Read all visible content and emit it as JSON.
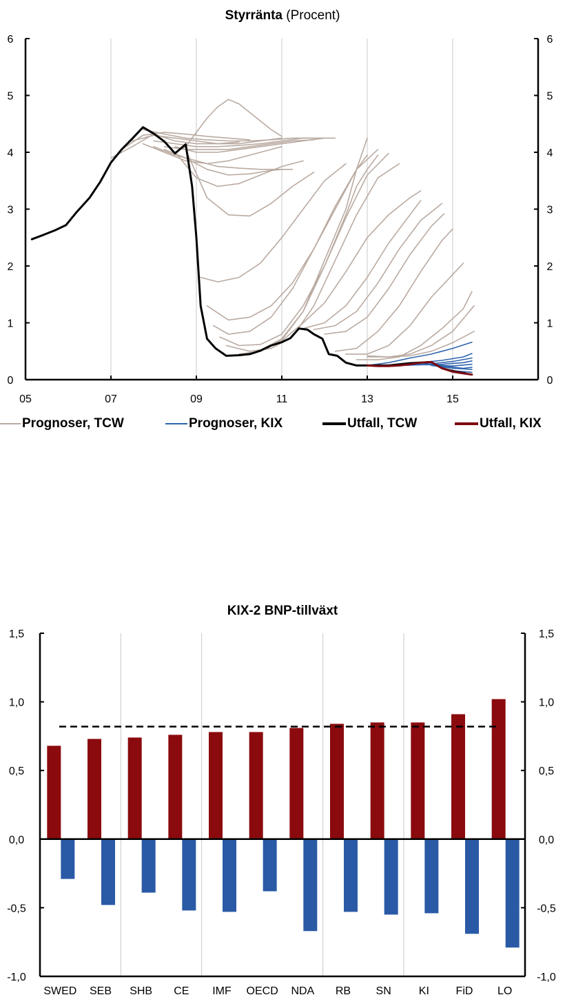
{
  "colors": {
    "forecast_tcw": "#b9aaa1",
    "forecast_kix": "#2e64ad",
    "outcome_tcw": "#000000",
    "outcome_kix": "#7d0a12",
    "bar_positive": "#8a0a0e",
    "bar_negative": "#2a5aa6",
    "grid": "#c8c8c8"
  },
  "chart1": {
    "title_bold": "Styrränta",
    "title_rest": " (Procent)",
    "legend": [
      {
        "label": "Prognoser, TCW",
        "color": "#b9aaa1",
        "weight": "thin"
      },
      {
        "label": "Prognoser, KIX",
        "color": "#2e64ad",
        "weight": "thin"
      },
      {
        "label": "Utfall, TCW",
        "color": "#000000",
        "weight": "thick"
      },
      {
        "label": "Utfall, KIX",
        "color": "#7d0a12",
        "weight": "thick"
      }
    ]
  },
  "chart2": {
    "title": "KIX-2 BNP-tillväxt"
  },
  "chart_data": [
    {
      "type": "line",
      "title": "Styrränta (Procent)",
      "xlim": [
        5,
        17
      ],
      "ylim": [
        0,
        6
      ],
      "x_ticks": [
        5,
        7,
        9,
        11,
        13,
        15
      ],
      "x_tick_labels": [
        "05",
        "07",
        "09",
        "11",
        "13",
        "15"
      ],
      "y_ticks": [
        0,
        1,
        2,
        3,
        4,
        5,
        6
      ],
      "y_tick_labels": [
        "0",
        "1",
        "2",
        "3",
        "4",
        "5",
        "6"
      ],
      "grid": "vertical",
      "legend_position": "bottom",
      "outcome_tcw": {
        "name": "Utfall, TCW",
        "x": [
          5.15,
          5.4,
          5.7,
          5.95,
          6.2,
          6.5,
          6.75,
          7.0,
          7.25,
          7.5,
          7.75,
          8.0,
          8.25,
          8.5,
          8.75,
          8.8,
          8.9,
          9.0,
          9.1,
          9.25,
          9.45,
          9.7,
          10.0,
          10.25,
          10.5,
          10.75,
          11.0,
          11.2,
          11.4,
          11.6,
          11.75,
          11.95,
          12.1,
          12.3,
          12.5,
          12.75,
          13.0,
          13.5,
          14.0,
          14.25,
          14.5,
          14.75,
          15.0,
          15.3
        ],
        "y": [
          2.47,
          2.54,
          2.63,
          2.72,
          2.95,
          3.2,
          3.48,
          3.82,
          4.05,
          4.24,
          4.44,
          4.33,
          4.19,
          3.98,
          4.14,
          3.9,
          3.4,
          2.5,
          1.3,
          0.72,
          0.55,
          0.42,
          0.43,
          0.45,
          0.51,
          0.6,
          0.66,
          0.73,
          0.9,
          0.88,
          0.8,
          0.72,
          0.45,
          0.42,
          0.3,
          0.25,
          0.25,
          0.25,
          0.29,
          0.3,
          0.31,
          0.2,
          0.15,
          0.11
        ]
      },
      "outcome_kix": {
        "name": "Utfall, KIX",
        "x": [
          13.0,
          13.25,
          13.5,
          13.75,
          14.0,
          14.25,
          14.5,
          14.75,
          15.0,
          15.25,
          15.45
        ],
        "y": [
          0.25,
          0.24,
          0.24,
          0.25,
          0.27,
          0.3,
          0.31,
          0.2,
          0.14,
          0.11,
          0.09
        ]
      },
      "forecasts_tcw": [
        {
          "x": [
            7.0,
            7.5,
            8.0,
            8.5,
            9.0,
            9.5,
            10.0
          ],
          "y": [
            3.9,
            4.1,
            4.32,
            4.2,
            4.15,
            4.15,
            4.18
          ]
        },
        {
          "x": [
            7.25,
            7.75,
            8.25,
            8.75,
            9.25,
            9.75,
            10.25
          ],
          "y": [
            4.05,
            4.3,
            4.35,
            4.32,
            4.28,
            4.25,
            4.22
          ]
        },
        {
          "x": [
            7.5,
            8.0,
            8.5,
            9.0,
            9.5,
            10.0,
            10.5,
            11.0
          ],
          "y": [
            4.2,
            4.3,
            4.25,
            4.2,
            4.15,
            4.15,
            4.2,
            4.25
          ]
        },
        {
          "x": [
            7.75,
            8.25,
            8.75,
            9.25,
            9.75,
            10.25,
            10.75,
            11.25,
            11.75
          ],
          "y": [
            4.4,
            4.32,
            4.25,
            4.22,
            4.2,
            4.2,
            4.22,
            4.25,
            4.25
          ]
        },
        {
          "x": [
            8.0,
            8.5,
            9.0,
            9.5,
            10.0,
            10.5,
            11.0,
            11.5,
            12.0
          ],
          "y": [
            4.2,
            4.15,
            4.1,
            4.1,
            4.12,
            4.15,
            4.2,
            4.25,
            4.25
          ]
        },
        {
          "x": [
            8.25,
            8.75,
            9.25,
            9.75,
            10.25,
            10.75,
            11.25,
            11.75
          ],
          "y": [
            4.1,
            4.05,
            4.05,
            4.05,
            4.1,
            4.15,
            4.2,
            4.22
          ]
        },
        {
          "x": [
            8.5,
            9.0,
            9.5,
            10.0,
            10.5,
            11.0,
            11.5,
            12.0,
            12.25
          ],
          "y": [
            4.1,
            4.0,
            4.0,
            4.05,
            4.1,
            4.15,
            4.2,
            4.25,
            4.25
          ]
        },
        {
          "x": [
            8.5,
            8.75,
            9.0,
            9.25,
            9.5,
            9.75,
            10.0,
            10.25,
            10.5,
            10.75,
            11.0
          ],
          "y": [
            4.0,
            4.1,
            4.35,
            4.6,
            4.8,
            4.93,
            4.85,
            4.7,
            4.55,
            4.4,
            4.28
          ]
        },
        {
          "x": [
            7.75,
            8.25,
            8.75,
            9.25,
            9.75,
            10.25,
            10.75,
            11.0
          ],
          "y": [
            4.15,
            4.0,
            3.85,
            3.8,
            3.85,
            3.95,
            4.05,
            4.1
          ]
        },
        {
          "x": [
            8.0,
            8.5,
            9.0,
            9.5,
            10.0,
            10.5,
            11.0,
            11.25
          ],
          "y": [
            4.1,
            3.95,
            3.85,
            3.75,
            3.72,
            3.7,
            3.7,
            3.7
          ]
        },
        {
          "x": [
            8.25,
            8.75,
            9.25,
            9.75,
            10.25,
            10.75,
            11.0
          ],
          "y": [
            4.05,
            3.9,
            3.7,
            3.6,
            3.62,
            3.68,
            3.7
          ]
        },
        {
          "x": [
            8.5,
            9.0,
            9.5,
            10.0,
            10.5,
            11.0,
            11.5
          ],
          "y": [
            4.0,
            3.55,
            3.4,
            3.45,
            3.6,
            3.75,
            3.85
          ]
        },
        {
          "x": [
            8.75,
            9.25,
            9.75,
            10.25,
            10.75,
            11.25,
            11.75
          ],
          "y": [
            4.05,
            3.2,
            2.9,
            2.88,
            3.1,
            3.4,
            3.65
          ]
        },
        {
          "x": [
            9.1,
            9.5,
            10.0,
            10.5,
            11.0,
            11.5,
            12.0,
            12.5
          ],
          "y": [
            1.8,
            1.72,
            1.8,
            2.05,
            2.5,
            3.0,
            3.5,
            3.8
          ]
        },
        {
          "x": [
            9.25,
            9.75,
            10.25,
            10.75,
            11.25,
            11.75,
            12.25,
            12.75,
            13.0
          ],
          "y": [
            1.3,
            1.05,
            1.1,
            1.3,
            1.7,
            2.3,
            3.0,
            3.7,
            3.95
          ]
        },
        {
          "x": [
            9.4,
            9.75,
            10.25,
            10.75,
            11.25,
            11.75,
            12.25,
            12.75,
            13.25
          ],
          "y": [
            0.95,
            0.8,
            0.85,
            1.1,
            1.6,
            2.3,
            3.05,
            3.7,
            4.05
          ]
        },
        {
          "x": [
            9.55,
            10.0,
            10.5,
            11.0,
            11.5,
            12.0,
            12.5,
            13.0,
            13.5
          ],
          "y": [
            0.75,
            0.6,
            0.62,
            0.8,
            1.3,
            2.0,
            2.85,
            3.6,
            3.98
          ]
        },
        {
          "x": [
            9.7,
            10.25,
            10.75,
            11.25,
            11.75,
            12.25,
            12.75,
            13.25,
            13.75
          ],
          "y": [
            0.6,
            0.5,
            0.55,
            0.75,
            1.3,
            2.1,
            2.9,
            3.55,
            3.8
          ]
        },
        {
          "x": [
            10.0,
            10.5,
            11.0,
            11.5,
            12.0,
            12.5,
            12.75,
            13.0,
            13.25
          ],
          "y": [
            0.45,
            0.5,
            0.7,
            1.2,
            2.0,
            2.9,
            3.4,
            3.7,
            3.95
          ]
        },
        {
          "x": [
            10.5,
            11.0,
            11.5,
            12.0,
            12.5,
            12.75,
            13.0
          ],
          "y": [
            0.52,
            0.72,
            1.2,
            2.1,
            3.0,
            3.7,
            4.25
          ]
        },
        {
          "x": [
            11.0,
            11.5,
            12.0,
            12.5,
            13.0,
            13.5,
            14.0,
            14.25
          ],
          "y": [
            0.68,
            1.0,
            1.35,
            1.9,
            2.5,
            2.9,
            3.2,
            3.32
          ]
        },
        {
          "x": [
            11.5,
            12.0,
            12.5,
            13.0,
            13.5,
            14.0,
            14.25
          ],
          "y": [
            0.9,
            1.0,
            1.3,
            1.8,
            2.4,
            2.9,
            3.15
          ]
        },
        {
          "x": [
            11.75,
            12.25,
            12.75,
            13.25,
            13.75,
            14.25,
            14.75
          ],
          "y": [
            0.88,
            0.95,
            1.2,
            1.7,
            2.3,
            2.8,
            3.1
          ]
        },
        {
          "x": [
            12.0,
            12.5,
            13.0,
            13.5,
            14.0,
            14.5,
            14.8
          ],
          "y": [
            0.8,
            0.85,
            1.1,
            1.6,
            2.2,
            2.7,
            2.92
          ]
        },
        {
          "x": [
            12.25,
            12.75,
            13.25,
            13.75,
            14.25,
            14.75,
            15.0
          ],
          "y": [
            0.5,
            0.55,
            0.85,
            1.3,
            1.9,
            2.45,
            2.65
          ]
        },
        {
          "x": [
            12.5,
            13.0,
            13.5,
            14.0,
            14.5,
            15.0,
            15.25
          ],
          "y": [
            0.45,
            0.45,
            0.6,
            0.95,
            1.45,
            1.85,
            2.05
          ]
        },
        {
          "x": [
            12.75,
            13.25,
            13.75,
            14.25,
            14.75,
            15.25,
            15.45
          ],
          "y": [
            0.35,
            0.35,
            0.4,
            0.6,
            0.9,
            1.25,
            1.55
          ]
        },
        {
          "x": [
            13.0,
            13.5,
            14.0,
            14.5,
            15.0,
            15.5
          ],
          "y": [
            0.42,
            0.4,
            0.45,
            0.6,
            0.85,
            1.3
          ]
        },
        {
          "x": [
            13.0,
            13.5,
            14.0,
            14.5,
            15.0,
            15.5
          ],
          "y": [
            0.4,
            0.4,
            0.42,
            0.5,
            0.65,
            0.85
          ]
        }
      ],
      "forecasts_kix": [
        {
          "x": [
            13.0,
            13.5,
            14.0,
            14.5,
            15.0,
            15.45
          ],
          "y": [
            0.25,
            0.3,
            0.38,
            0.45,
            0.55,
            0.66
          ]
        },
        {
          "x": [
            13.25,
            13.75,
            14.25,
            14.75,
            15.25,
            15.45
          ],
          "y": [
            0.24,
            0.27,
            0.3,
            0.34,
            0.4,
            0.46
          ]
        },
        {
          "x": [
            13.5,
            14.0,
            14.5,
            15.0,
            15.45
          ],
          "y": [
            0.24,
            0.26,
            0.28,
            0.32,
            0.38
          ]
        },
        {
          "x": [
            13.75,
            14.25,
            14.75,
            15.25,
            15.45
          ],
          "y": [
            0.25,
            0.26,
            0.27,
            0.3,
            0.33
          ]
        },
        {
          "x": [
            14.0,
            14.5,
            15.0,
            15.45
          ],
          "y": [
            0.27,
            0.26,
            0.24,
            0.27
          ]
        },
        {
          "x": [
            14.25,
            14.75,
            15.25,
            15.45
          ],
          "y": [
            0.3,
            0.24,
            0.2,
            0.22
          ]
        },
        {
          "x": [
            14.5,
            15.0,
            15.45
          ],
          "y": [
            0.25,
            0.2,
            0.18
          ]
        },
        {
          "x": [
            14.75,
            15.1,
            15.45
          ],
          "y": [
            0.2,
            0.15,
            0.13
          ]
        }
      ]
    },
    {
      "type": "bar",
      "title": "KIX-2 BNP-tillväxt",
      "categories": [
        "SWED",
        "SEB",
        "SHB",
        "CE",
        "IMF",
        "OECD",
        "NDA",
        "RB",
        "SN",
        "KI",
        "FiD",
        "LO"
      ],
      "ylim": [
        -1.0,
        1.5
      ],
      "y_ticks": [
        -1.0,
        -0.5,
        0.0,
        0.5,
        1.0,
        1.5
      ],
      "y_tick_labels": [
        "-1,0",
        "-0,5",
        "0,0",
        "0,5",
        "1,0",
        "1,5"
      ],
      "grid": "vertical separators",
      "series": [
        {
          "values": [
            0.68,
            0.73,
            0.74,
            0.76,
            0.78,
            0.78,
            0.81,
            0.84,
            0.85,
            0.85,
            0.91,
            1.02
          ],
          "color": "#8a0a0e"
        },
        {
          "values": [
            -0.29,
            -0.48,
            -0.39,
            -0.52,
            -0.53,
            -0.38,
            -0.67,
            -0.53,
            -0.55,
            -0.54,
            -0.69,
            -0.79
          ],
          "color": "#2a5aa6"
        }
      ],
      "reference_line": {
        "value": 0.82,
        "style": "dashed"
      }
    }
  ]
}
